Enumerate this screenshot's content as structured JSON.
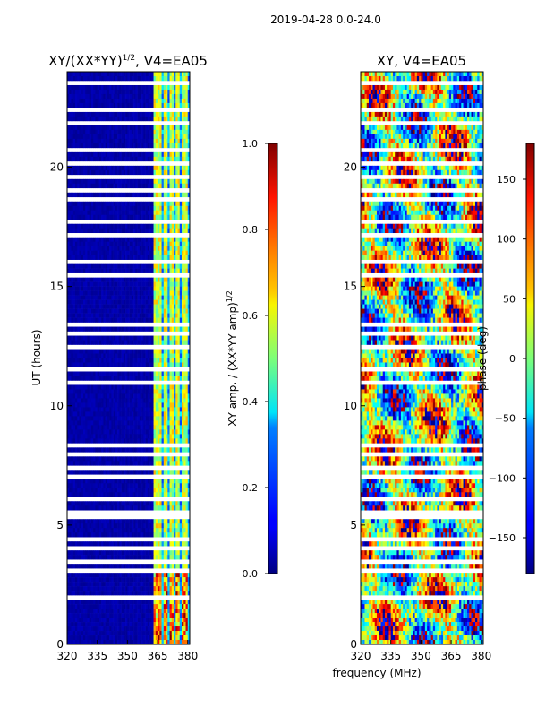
{
  "figure": {
    "suptitle": "2019-04-28 0.0-24.0",
    "shared_xlabel": "frequency (MHz)"
  },
  "chart_data": [
    {
      "type": "heatmap",
      "title": "XY/(XX*YY)",
      "title_exp": "1/2",
      "title_suffix": ", V4=EA05",
      "xlabel": "",
      "ylabel": "UT (hours)",
      "xlim": [
        320,
        381
      ],
      "ylim": [
        0,
        24
      ],
      "xticks": [
        "320",
        "335",
        "350",
        "365",
        "380"
      ],
      "xtick_values": [
        320,
        335,
        350,
        365,
        380
      ],
      "yticks": [
        "0",
        "5",
        "10",
        "15",
        "20"
      ],
      "ytick_values": [
        0,
        5,
        10,
        15,
        20
      ],
      "colorbar": {
        "label": "XY amp. / (XX*YY amp)",
        "label_exp": "1/2",
        "range": [
          0.0,
          1.0
        ],
        "ticks": [
          "0.0",
          "0.2",
          "0.4",
          "0.6",
          "0.8",
          "1.0"
        ],
        "tick_values": [
          0.0,
          0.2,
          0.4,
          0.6,
          0.8,
          1.0
        ],
        "colormap": "jet"
      },
      "gaps_ut": [
        [
          0.5,
          0.6
        ],
        [
          1.9,
          2.0
        ],
        [
          3.0,
          3.1
        ],
        [
          3.4,
          3.5
        ],
        [
          4.0,
          4.1
        ],
        [
          4.4,
          4.5
        ],
        [
          5.2,
          5.6
        ],
        [
          6.0,
          6.1
        ],
        [
          6.5,
          6.6
        ],
        [
          7.0,
          7.1
        ],
        [
          7.4,
          7.5
        ],
        [
          7.9,
          8.0
        ],
        [
          8.3,
          8.4
        ],
        [
          8.8,
          8.9
        ],
        [
          9.5,
          9.6
        ],
        [
          10.9,
          11.1
        ],
        [
          11.5,
          11.7
        ],
        [
          12.4,
          12.5
        ],
        [
          13.0,
          13.1
        ],
        [
          13.4,
          13.5
        ],
        [
          14.0,
          14.1
        ],
        [
          15.4,
          15.5
        ],
        [
          16.0,
          16.1
        ],
        [
          17.0,
          17.2
        ],
        [
          17.6,
          17.9
        ],
        [
          18.6,
          18.7
        ],
        [
          19.0,
          19.1
        ],
        [
          19.5,
          19.6
        ],
        [
          20.1,
          20.2
        ],
        [
          20.7,
          20.8
        ],
        [
          21.3,
          21.4
        ],
        [
          21.8,
          22.0
        ],
        [
          22.4,
          22.5
        ],
        [
          23.0,
          23.1
        ],
        [
          23.5,
          23.6
        ]
      ],
      "bright_channels_mhz": [
        364,
        366,
        369,
        372,
        375,
        378,
        379
      ],
      "bright_level": 0.45
    },
    {
      "type": "heatmap",
      "title": "XY, V4=EA05",
      "xlabel": "frequency (MHz)",
      "ylabel": "",
      "xlim": [
        320,
        381
      ],
      "ylim": [
        0,
        24
      ],
      "xticks": [
        "320",
        "335",
        "350",
        "365",
        "380"
      ],
      "xtick_values": [
        320,
        335,
        350,
        365,
        380
      ],
      "yticks": [
        "0",
        "5",
        "10",
        "15",
        "20"
      ],
      "ytick_values": [
        0,
        5,
        10,
        15,
        20
      ],
      "colorbar": {
        "label": "phase (deg)",
        "range": [
          -180,
          180
        ],
        "ticks": [
          "−150",
          "−100",
          "−50",
          "0",
          "50",
          "100",
          "150"
        ],
        "tick_values": [
          -150,
          -100,
          -50,
          0,
          50,
          100,
          150
        ],
        "colormap": "jet"
      },
      "gaps_ut": [
        [
          0.5,
          0.6
        ],
        [
          1.9,
          2.0
        ],
        [
          3.0,
          3.1
        ],
        [
          3.4,
          3.5
        ],
        [
          4.0,
          4.1
        ],
        [
          4.4,
          4.5
        ],
        [
          5.2,
          5.6
        ],
        [
          6.0,
          6.1
        ],
        [
          6.5,
          6.6
        ],
        [
          7.0,
          7.1
        ],
        [
          7.4,
          7.5
        ],
        [
          7.9,
          8.0
        ],
        [
          8.3,
          8.4
        ],
        [
          8.8,
          8.9
        ],
        [
          9.5,
          9.6
        ],
        [
          10.9,
          11.1
        ],
        [
          11.5,
          11.7
        ],
        [
          12.4,
          12.5
        ],
        [
          13.0,
          13.1
        ],
        [
          13.4,
          13.5
        ],
        [
          14.0,
          14.1
        ],
        [
          15.4,
          15.5
        ],
        [
          16.0,
          16.1
        ],
        [
          17.0,
          17.2
        ],
        [
          17.6,
          17.9
        ],
        [
          18.6,
          18.7
        ],
        [
          19.0,
          19.1
        ],
        [
          19.5,
          19.6
        ],
        [
          20.1,
          20.2
        ],
        [
          20.7,
          20.8
        ],
        [
          21.3,
          21.4
        ],
        [
          21.8,
          22.0
        ],
        [
          22.4,
          22.5
        ],
        [
          23.0,
          23.1
        ],
        [
          23.5,
          23.6
        ]
      ]
    }
  ]
}
